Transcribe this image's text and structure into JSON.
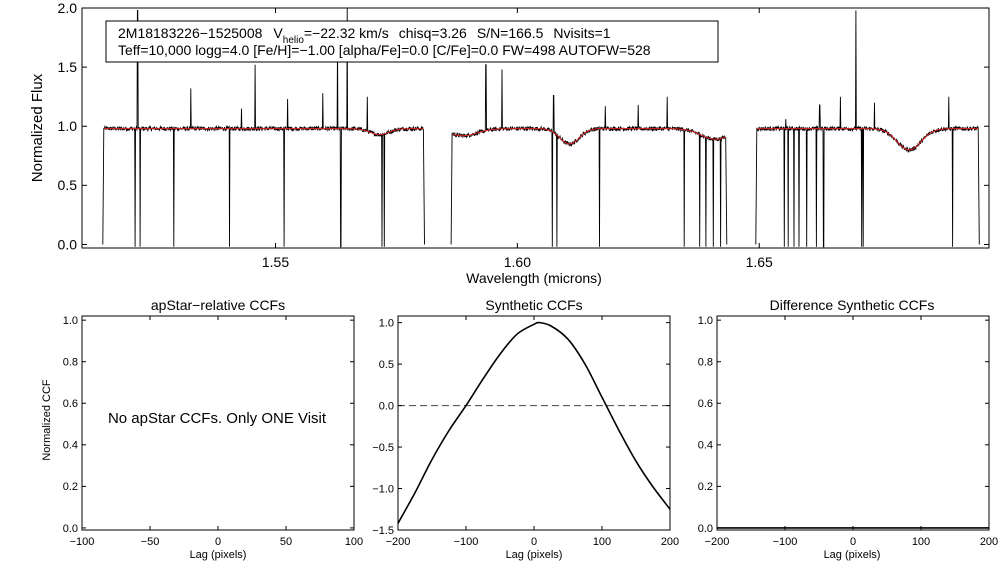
{
  "chart_data": [
    {
      "type": "line",
      "id": "spectrum",
      "title": "",
      "xlabel": "Wavelength (microns)",
      "ylabel": "Normalized Flux",
      "xlim": [
        1.51,
        1.6975
      ],
      "ylim": [
        -0.03,
        2.0
      ],
      "xticks": [
        1.55,
        1.6,
        1.65
      ],
      "xtick_labels": [
        "1.55",
        "1.60",
        "1.65"
      ],
      "yticks": [
        0.0,
        0.5,
        1.0,
        1.5,
        2.0
      ],
      "ytick_labels": [
        "0.0",
        "0.5",
        "1.0",
        "1.5",
        "2.0"
      ],
      "chips": [
        [
          1.5143,
          1.5808
        ],
        [
          1.5863,
          1.6433
        ],
        [
          1.6493,
          1.6955
        ]
      ],
      "continuum": 0.98,
      "absorption_dips": [
        {
          "x": 1.5715,
          "depth": 0.05,
          "width": 0.002
        },
        {
          "x": 1.5888,
          "depth": 0.06,
          "width": 0.003
        },
        {
          "x": 1.6108,
          "depth": 0.13,
          "width": 0.002
        },
        {
          "x": 1.641,
          "depth": 0.09,
          "width": 0.003
        },
        {
          "x": 1.681,
          "depth": 0.18,
          "width": 0.0025
        }
      ],
      "emission_spikes": [
        {
          "x": 1.5215,
          "y": 1.98
        },
        {
          "x": 1.5325,
          "y": 1.32
        },
        {
          "x": 1.543,
          "y": 1.15
        },
        {
          "x": 1.5458,
          "y": 1.52
        },
        {
          "x": 1.5525,
          "y": 1.23
        },
        {
          "x": 1.5598,
          "y": 1.28
        },
        {
          "x": 1.5628,
          "y": 1.75
        },
        {
          "x": 1.5648,
          "y": 2.0
        },
        {
          "x": 1.569,
          "y": 1.25
        },
        {
          "x": 1.5935,
          "y": 1.52
        },
        {
          "x": 1.5968,
          "y": 1.48
        },
        {
          "x": 1.6075,
          "y": 1.26
        },
        {
          "x": 1.6182,
          "y": 1.17
        },
        {
          "x": 1.625,
          "y": 1.18
        },
        {
          "x": 1.631,
          "y": 1.25
        },
        {
          "x": 1.6345,
          "y": 1.85
        },
        {
          "x": 1.6405,
          "y": 1.35
        },
        {
          "x": 1.6555,
          "y": 1.06
        },
        {
          "x": 1.6625,
          "y": 1.18
        },
        {
          "x": 1.6668,
          "y": 1.25
        },
        {
          "x": 1.6738,
          "y": 1.2
        },
        {
          "x": 1.67,
          "y": 1.98
        },
        {
          "x": 1.6892,
          "y": 1.25
        }
      ],
      "bad_pixels": [
        1.521,
        1.522,
        1.529,
        1.5405,
        1.5518,
        1.5635,
        1.572,
        1.5725,
        1.6072,
        1.6082,
        1.617,
        1.6345,
        1.6377,
        1.639,
        1.6405,
        1.642,
        1.6552,
        1.656,
        1.6572,
        1.6582,
        1.6598,
        1.6618,
        1.6633,
        1.6712,
        1.6715,
        1.69
      ],
      "series": [
        {
          "name": "observed",
          "color": "#000000"
        },
        {
          "name": "model",
          "color": "#dd2222"
        }
      ],
      "annotation": {
        "star": "2M18183226−1525008",
        "v_prefix": "V",
        "v_sub": "helio",
        "v_value": "=−22.32 km/s",
        "chisq": "chisq=3.26",
        "snr": "S/N=166.5",
        "nvisits": "Nvisits=1",
        "line2": "Teff=10,000 logg=4.0 [Fe/H]=−1.00 [alpha/Fe]=0.0 [C/Fe]=0.0 FW=498 AUTOFW=528"
      }
    },
    {
      "type": "line",
      "id": "apstar",
      "title": "apStar−relative CCFs",
      "xlabel": "Lag (pixels)",
      "ylabel": "Normalized CCF",
      "xlim": [
        -100,
        100
      ],
      "ylim": [
        -0.01,
        1.02
      ],
      "xticks": [
        -100,
        -50,
        0,
        50,
        100
      ],
      "xtick_labels": [
        "−100",
        "−50",
        "0",
        "50",
        "100"
      ],
      "yticks": [
        0.0,
        0.2,
        0.4,
        0.6,
        0.8,
        1.0
      ],
      "ytick_labels": [
        "0.0",
        "0.2",
        "0.4",
        "0.6",
        "0.8",
        "1.0"
      ],
      "message": "No apStar CCFs.  Only ONE Visit",
      "series": []
    },
    {
      "type": "line",
      "id": "synthetic",
      "title": "Synthetic CCFs",
      "xlabel": "Lag (pixels)",
      "ylabel": "",
      "xlim": [
        -200,
        200
      ],
      "ylim": [
        -1.5,
        1.08
      ],
      "xticks": [
        -200,
        -100,
        0,
        100,
        200
      ],
      "xtick_labels": [
        "−200",
        "−100",
        "0",
        "100",
        "200"
      ],
      "yticks": [
        -1.5,
        -1.0,
        -0.5,
        0.0,
        0.5,
        1.0
      ],
      "ytick_labels": [
        "−1.5",
        "−1.0",
        "−0.5",
        "0.0",
        "0.5",
        "1.0"
      ],
      "reference_line": 0.0,
      "series": [
        {
          "name": "ccf",
          "color": "#000000",
          "x": [
            -200,
            -175,
            -150,
            -125,
            -100,
            -75,
            -50,
            -25,
            0,
            8,
            25,
            50,
            75,
            100,
            125,
            150,
            175,
            200
          ],
          "y": [
            -1.42,
            -1.05,
            -0.65,
            -0.3,
            0.0,
            0.32,
            0.62,
            0.86,
            0.98,
            1.0,
            0.96,
            0.8,
            0.5,
            0.1,
            -0.3,
            -0.67,
            -0.98,
            -1.25
          ]
        }
      ]
    },
    {
      "type": "line",
      "id": "difference",
      "title": "Difference Synthetic CCFs",
      "xlabel": "Lag (pixels)",
      "ylabel": "",
      "xlim": [
        -200,
        200
      ],
      "ylim": [
        -0.01,
        1.02
      ],
      "xticks": [
        -200,
        -100,
        0,
        100,
        200
      ],
      "xtick_labels": [
        "−200",
        "−100",
        "0",
        "100",
        "200"
      ],
      "yticks": [
        0.0,
        0.2,
        0.4,
        0.6,
        0.8,
        1.0
      ],
      "ytick_labels": [
        "0.0",
        "0.2",
        "0.4",
        "0.6",
        "0.8",
        "1.0"
      ],
      "series": [
        {
          "name": "diff",
          "color": "#000000",
          "x": [
            -200,
            200
          ],
          "y": [
            0.0,
            0.0
          ]
        }
      ]
    }
  ]
}
